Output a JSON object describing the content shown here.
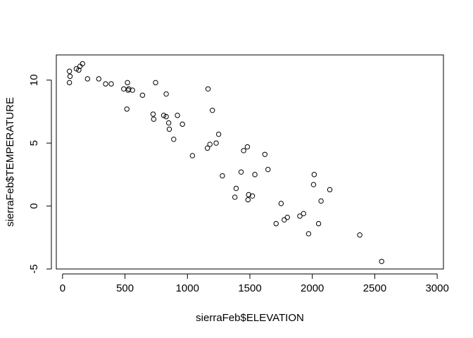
{
  "chart_data": {
    "type": "scatter",
    "title": "",
    "xlabel": "sierraFeb$ELEVATION",
    "ylabel": "sierraFeb$TEMPERATURE",
    "xlim": [
      -50,
      3050
    ],
    "ylim": [
      -5,
      12
    ],
    "xticks": [
      0,
      500,
      1000,
      1500,
      2000,
      2500,
      3000
    ],
    "yticks": [
      -5,
      0,
      5,
      10
    ],
    "grid": false,
    "legend": "none",
    "marker": "open-circle",
    "colors": {
      "marker": "#000000",
      "axis": "#000000",
      "background": "#ffffff"
    },
    "points": [
      [
        55,
        10.7
      ],
      [
        60,
        10.3
      ],
      [
        55,
        9.8
      ],
      [
        110,
        10.9
      ],
      [
        130,
        10.8
      ],
      [
        140,
        11.1
      ],
      [
        160,
        11.3
      ],
      [
        200,
        10.1
      ],
      [
        290,
        10.1
      ],
      [
        345,
        9.7
      ],
      [
        390,
        9.7
      ],
      [
        490,
        9.3
      ],
      [
        515,
        7.7
      ],
      [
        520,
        9.8
      ],
      [
        525,
        9.2
      ],
      [
        530,
        9.3
      ],
      [
        560,
        9.2
      ],
      [
        640,
        8.8
      ],
      [
        725,
        7.3
      ],
      [
        730,
        6.9
      ],
      [
        745,
        9.8
      ],
      [
        810,
        7.2
      ],
      [
        830,
        7.1
      ],
      [
        830,
        8.9
      ],
      [
        850,
        6.6
      ],
      [
        855,
        6.1
      ],
      [
        890,
        5.3
      ],
      [
        920,
        7.2
      ],
      [
        960,
        6.5
      ],
      [
        1040,
        4.0
      ],
      [
        1160,
        4.6
      ],
      [
        1165,
        9.3
      ],
      [
        1180,
        4.9
      ],
      [
        1200,
        7.6
      ],
      [
        1230,
        5.0
      ],
      [
        1250,
        5.7
      ],
      [
        1280,
        2.4
      ],
      [
        1380,
        0.7
      ],
      [
        1390,
        1.4
      ],
      [
        1430,
        2.7
      ],
      [
        1450,
        4.4
      ],
      [
        1480,
        4.7
      ],
      [
        1485,
        0.5
      ],
      [
        1490,
        0.9
      ],
      [
        1520,
        0.8
      ],
      [
        1540,
        2.5
      ],
      [
        1620,
        4.1
      ],
      [
        1645,
        2.9
      ],
      [
        1710,
        -1.4
      ],
      [
        1750,
        0.2
      ],
      [
        1775,
        -1.1
      ],
      [
        1800,
        -0.9
      ],
      [
        1900,
        -0.8
      ],
      [
        1930,
        -0.6
      ],
      [
        1970,
        -2.2
      ],
      [
        2010,
        1.7
      ],
      [
        2015,
        2.5
      ],
      [
        2050,
        -1.4
      ],
      [
        2070,
        0.4
      ],
      [
        2140,
        1.3
      ],
      [
        2380,
        -2.3
      ],
      [
        2555,
        -4.4
      ]
    ]
  }
}
